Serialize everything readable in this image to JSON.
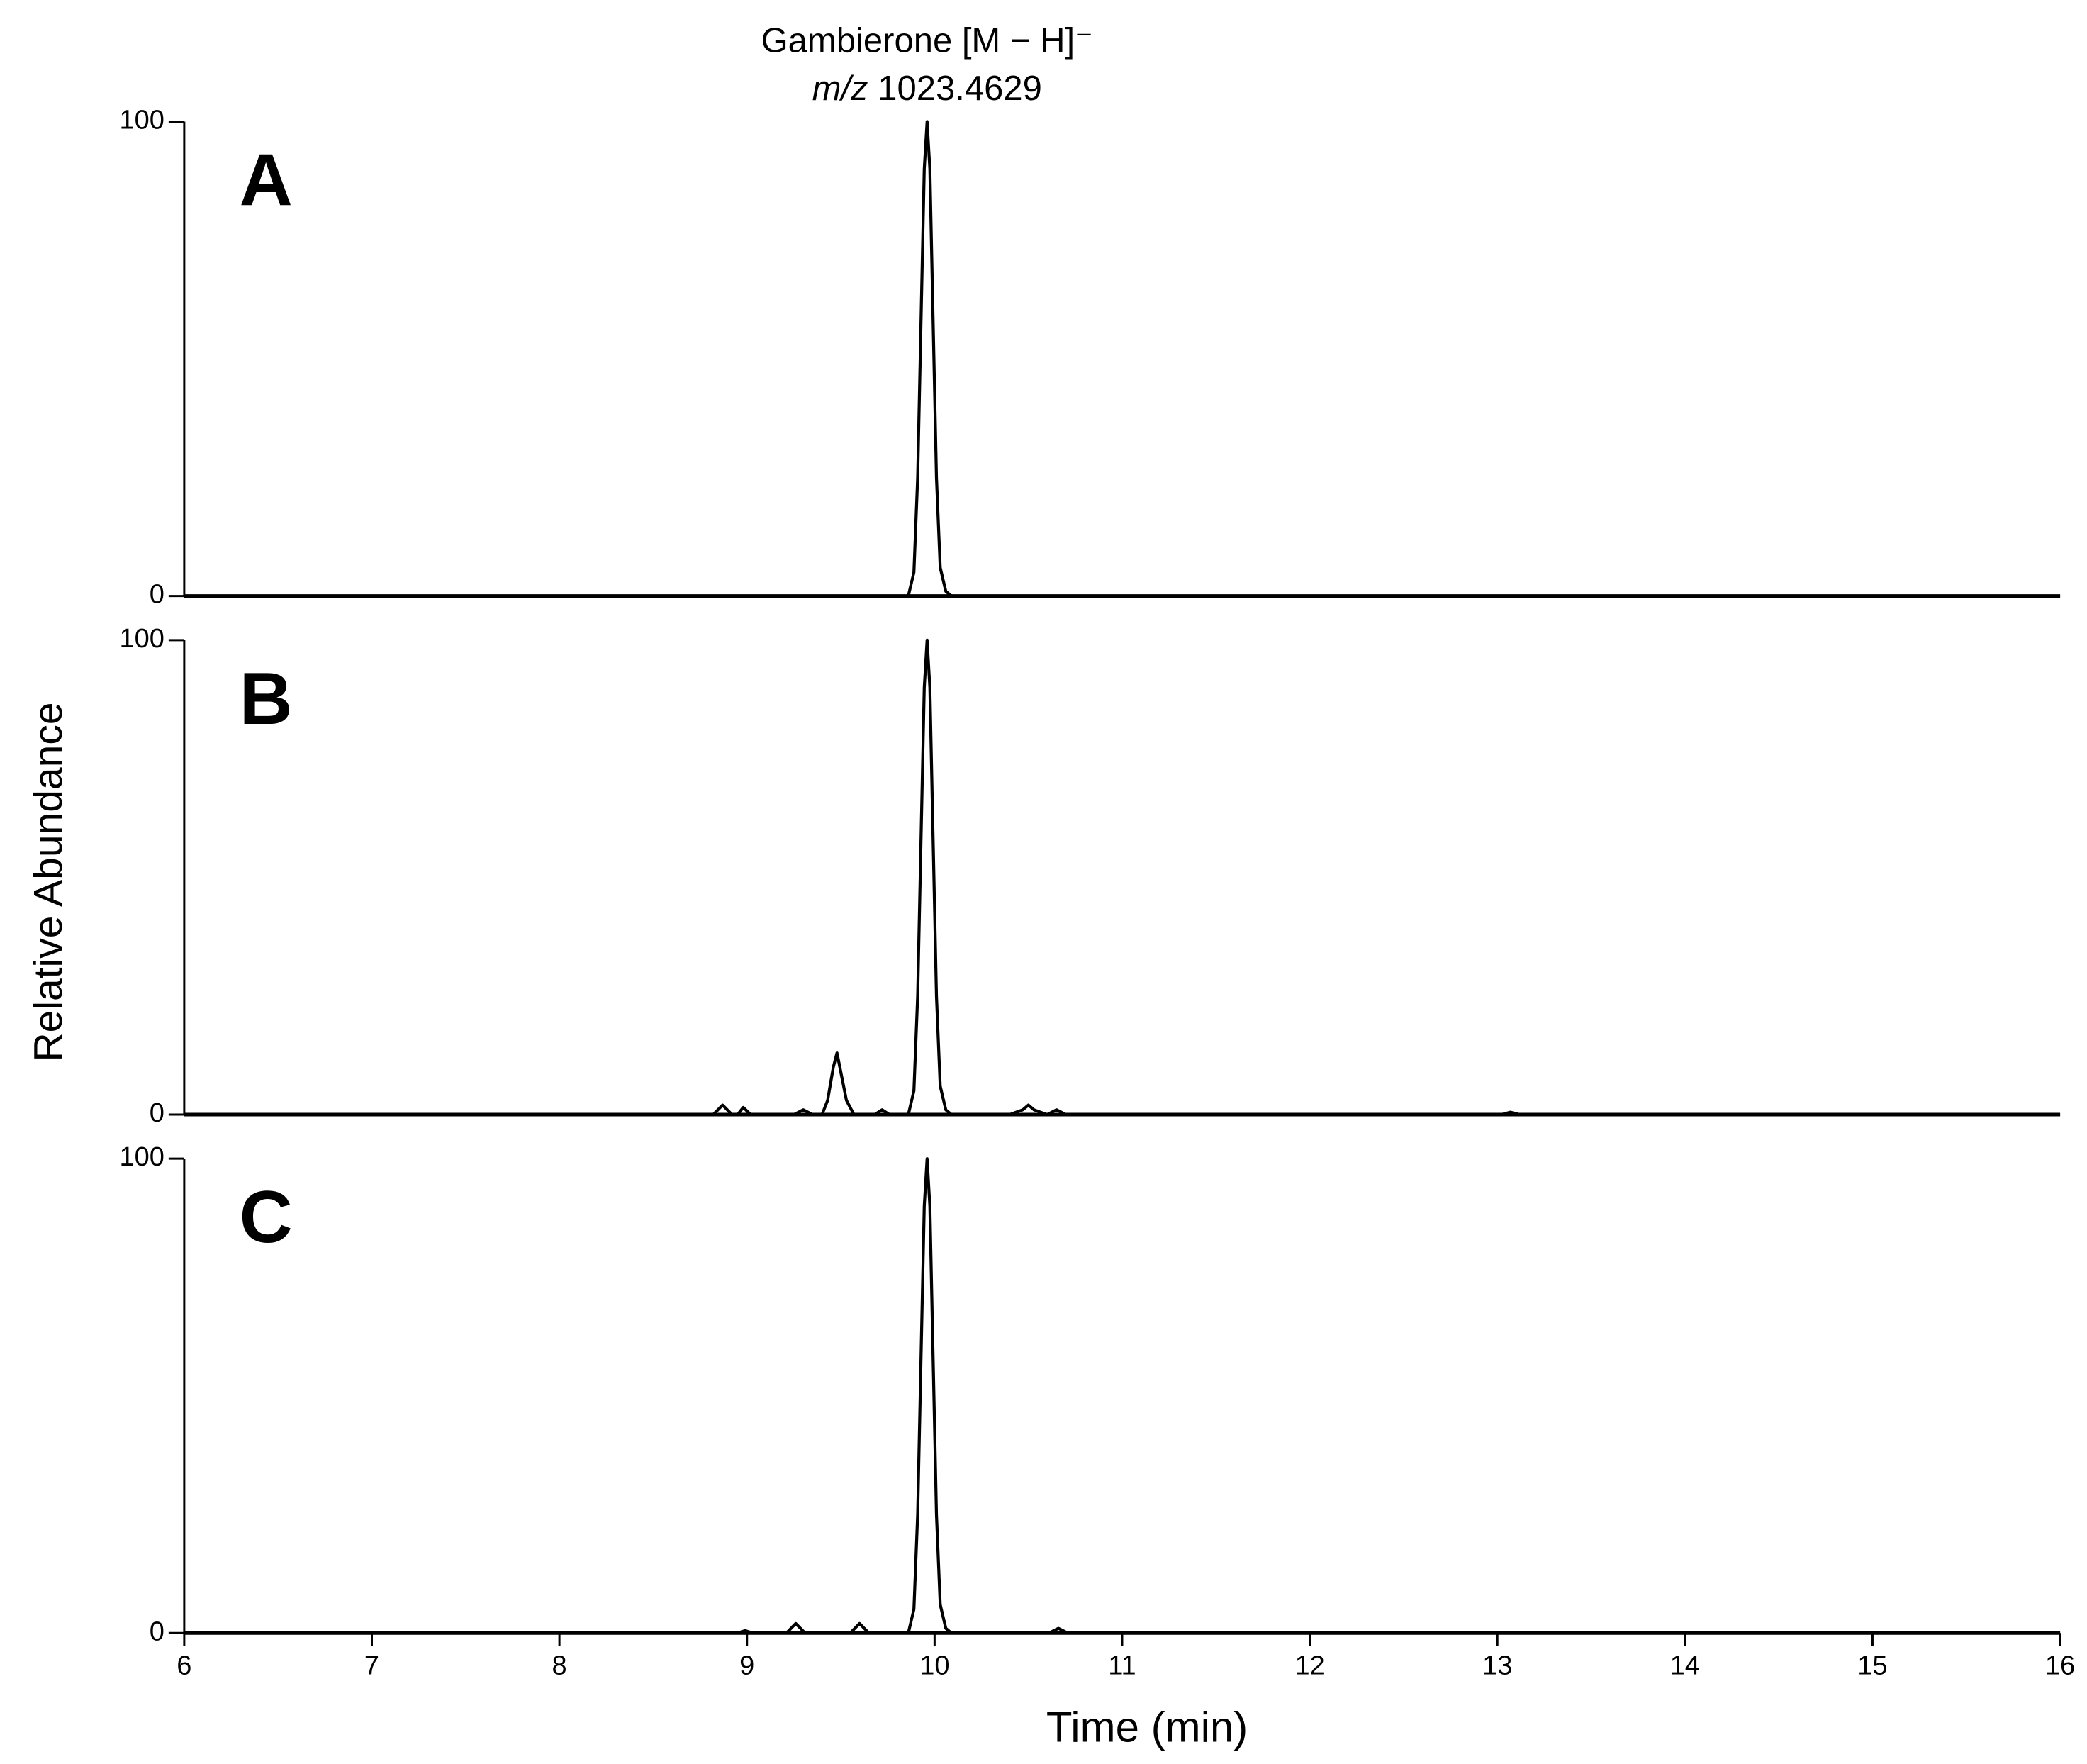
{
  "chart_data": [
    {
      "type": "line",
      "panel_label": "A",
      "annotation": {
        "compound": "Gambierone [M − H]⁻",
        "mz_label": "m/z",
        "mz": "1023.4629"
      },
      "x": [
        6,
        9.86,
        9.89,
        9.91,
        9.93,
        9.945,
        9.96,
        9.975,
        9.99,
        10.01,
        10.03,
        10.06,
        10.09,
        16
      ],
      "values": [
        0,
        0,
        5,
        25,
        62,
        90,
        100,
        90,
        62,
        25,
        6,
        1,
        0,
        0
      ],
      "color": "#000000",
      "xlim": [
        6,
        16
      ],
      "ylim": [
        0,
        100
      ],
      "yticks": [
        0,
        100
      ]
    },
    {
      "type": "line",
      "panel_label": "B",
      "ylabel": "Relative Abundance",
      "x": [
        6,
        8.82,
        8.87,
        8.92,
        8.95,
        8.98,
        9.02,
        9.25,
        9.3,
        9.35,
        9.4,
        9.43,
        9.46,
        9.48,
        9.5,
        9.53,
        9.57,
        9.68,
        9.72,
        9.76,
        9.86,
        9.89,
        9.91,
        9.93,
        9.945,
        9.96,
        9.975,
        9.99,
        10.01,
        10.03,
        10.06,
        10.09,
        10.4,
        10.47,
        10.5,
        10.53,
        10.6,
        10.65,
        10.7,
        13.02,
        13.07,
        13.12,
        16
      ],
      "values": [
        0,
        0,
        2,
        0,
        0,
        1.5,
        0,
        0,
        1,
        0,
        0,
        3,
        10,
        13,
        9,
        3,
        0,
        0,
        1,
        0,
        0,
        5,
        25,
        62,
        90,
        100,
        90,
        62,
        25,
        6,
        1,
        0,
        0,
        1,
        2,
        1,
        0,
        1,
        0,
        0,
        0.5,
        0,
        0
      ],
      "color": "#000000",
      "xlim": [
        6,
        16
      ],
      "ylim": [
        0,
        100
      ],
      "yticks": [
        0,
        100
      ]
    },
    {
      "type": "line",
      "panel_label": "C",
      "xlabel": "Time (min)",
      "x": [
        6,
        8.95,
        8.99,
        9.03,
        9.21,
        9.26,
        9.31,
        9.55,
        9.6,
        9.65,
        9.86,
        9.89,
        9.91,
        9.93,
        9.945,
        9.96,
        9.975,
        9.99,
        10.01,
        10.03,
        10.06,
        10.09,
        10.61,
        10.66,
        10.71,
        16
      ],
      "values": [
        0,
        0,
        0.5,
        0,
        0,
        2,
        0,
        0,
        2,
        0,
        0,
        5,
        25,
        62,
        90,
        100,
        90,
        62,
        25,
        6,
        1,
        0,
        0,
        1,
        0,
        0
      ],
      "color": "#000000",
      "xlim": [
        6,
        16
      ],
      "ylim": [
        0,
        100
      ],
      "yticks": [
        0,
        100
      ],
      "xticks": [
        6,
        7,
        8,
        9,
        10,
        11,
        12,
        13,
        14,
        15,
        16
      ]
    }
  ]
}
